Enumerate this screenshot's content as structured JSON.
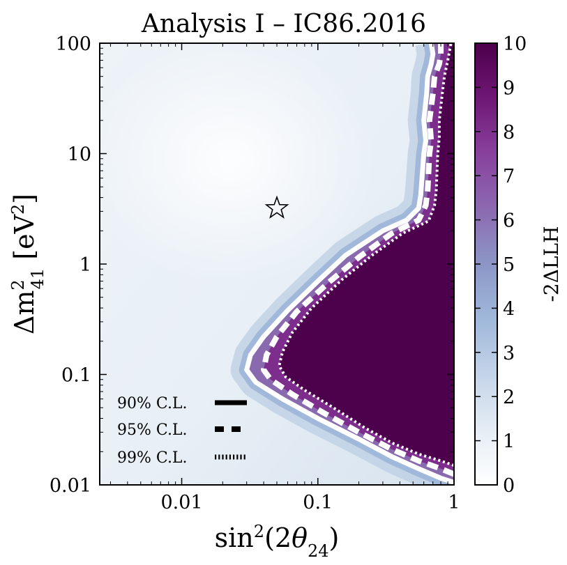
{
  "chart_data": {
    "type": "heatmap",
    "title": "Analysis I – IC86.2016",
    "xlabel": "sin²(2θ₂₄)",
    "ylabel": "Δm²₄₁ [eV²]",
    "x_scale": "log",
    "y_scale": "log",
    "xlim": [
      0.0025,
      1
    ],
    "ylim": [
      0.01,
      100
    ],
    "x_ticks": [
      {
        "value": 0.01,
        "label": "0.01"
      },
      {
        "value": 0.1,
        "label": "0.1"
      },
      {
        "value": 1,
        "label": "1"
      }
    ],
    "y_ticks": [
      {
        "value": 0.01,
        "label": "0.01"
      },
      {
        "value": 0.1,
        "label": "0.1"
      },
      {
        "value": 1,
        "label": "1"
      },
      {
        "value": 10,
        "label": "10"
      },
      {
        "value": 100,
        "label": "100"
      }
    ],
    "colorbar": {
      "label": "-2ΔLLH",
      "min": 0,
      "max": 10,
      "ticks": [
        "0",
        "1",
        "2",
        "3",
        "4",
        "5",
        "6",
        "7",
        "8",
        "9",
        "10"
      ],
      "colors": [
        "#ffffff",
        "#dfe8f1",
        "#a6bedc",
        "#8c8ec2",
        "#86509d",
        "#4f0550"
      ]
    },
    "best_fit": {
      "x": 0.05,
      "y": 3.2,
      "marker": "star"
    },
    "contours": [
      {
        "name": "90% C.L.",
        "style": "solid",
        "points": [
          [
            1,
            0.0105
          ],
          [
            0.8,
            0.0115
          ],
          [
            0.55,
            0.014
          ],
          [
            0.35,
            0.018
          ],
          [
            0.2,
            0.026
          ],
          [
            0.1,
            0.04
          ],
          [
            0.055,
            0.06
          ],
          [
            0.035,
            0.085
          ],
          [
            0.03,
            0.11
          ],
          [
            0.032,
            0.15
          ],
          [
            0.04,
            0.22
          ],
          [
            0.06,
            0.38
          ],
          [
            0.1,
            0.7
          ],
          [
            0.16,
            1.2
          ],
          [
            0.3,
            2.0
          ],
          [
            0.45,
            2.5
          ],
          [
            0.55,
            3.2
          ],
          [
            0.57,
            4.2
          ],
          [
            0.6,
            10
          ],
          [
            0.62,
            13
          ],
          [
            0.6,
            20
          ],
          [
            0.63,
            35
          ],
          [
            0.64,
            50
          ],
          [
            0.68,
            65
          ],
          [
            0.7,
            80
          ],
          [
            0.68,
            100
          ]
        ]
      },
      {
        "name": "95% C.L.",
        "style": "dashed",
        "points": [
          [
            1,
            0.0125
          ],
          [
            0.8,
            0.014
          ],
          [
            0.55,
            0.0165
          ],
          [
            0.35,
            0.021
          ],
          [
            0.2,
            0.03
          ],
          [
            0.11,
            0.045
          ],
          [
            0.065,
            0.066
          ],
          [
            0.045,
            0.09
          ],
          [
            0.04,
            0.11
          ],
          [
            0.042,
            0.15
          ],
          [
            0.05,
            0.22
          ],
          [
            0.07,
            0.37
          ],
          [
            0.12,
            0.68
          ],
          [
            0.2,
            1.15
          ],
          [
            0.35,
            1.9
          ],
          [
            0.55,
            2.5
          ],
          [
            0.62,
            3.4
          ],
          [
            0.64,
            4.6
          ],
          [
            0.66,
            10
          ],
          [
            0.68,
            13
          ],
          [
            0.66,
            20
          ],
          [
            0.7,
            35
          ],
          [
            0.72,
            50
          ],
          [
            0.78,
            65
          ],
          [
            0.8,
            80
          ],
          [
            0.8,
            100
          ]
        ]
      },
      {
        "name": "99% C.L.",
        "style": "dotted",
        "points": [
          [
            1,
            0.015
          ],
          [
            0.8,
            0.0165
          ],
          [
            0.55,
            0.019
          ],
          [
            0.35,
            0.024
          ],
          [
            0.22,
            0.033
          ],
          [
            0.13,
            0.05
          ],
          [
            0.08,
            0.072
          ],
          [
            0.058,
            0.095
          ],
          [
            0.052,
            0.12
          ],
          [
            0.055,
            0.16
          ],
          [
            0.065,
            0.24
          ],
          [
            0.09,
            0.4
          ],
          [
            0.15,
            0.72
          ],
          [
            0.25,
            1.2
          ],
          [
            0.42,
            1.9
          ],
          [
            0.65,
            2.45
          ],
          [
            0.72,
            3.4
          ],
          [
            0.74,
            4.6
          ],
          [
            0.76,
            10
          ],
          [
            0.78,
            14
          ],
          [
            0.78,
            20
          ],
          [
            0.82,
            35
          ],
          [
            0.85,
            50
          ],
          [
            0.9,
            70
          ],
          [
            0.95,
            100
          ]
        ]
      }
    ],
    "legend": {
      "placement": "bottom-left",
      "entries": [
        {
          "label": "90% C.L.",
          "style": "solid"
        },
        {
          "label": "95% C.L.",
          "style": "dashed"
        },
        {
          "label": "99% C.L.",
          "style": "dotted"
        }
      ]
    }
  }
}
